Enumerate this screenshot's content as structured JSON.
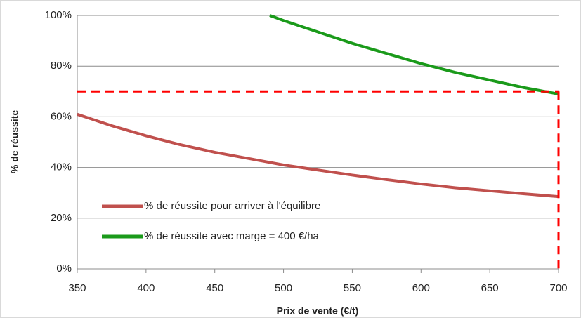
{
  "chart_data": {
    "type": "line",
    "xlabel": "Prix de vente (€/t)",
    "ylabel": "% de réussite",
    "x": [
      350,
      375,
      400,
      425,
      450,
      475,
      490,
      500,
      525,
      550,
      575,
      600,
      625,
      650,
      675,
      700
    ],
    "series": [
      {
        "name": "% de réussite pour arriver à l'équilibre",
        "color": "#c0504d",
        "values": [
          61,
          56.5,
          52.5,
          49,
          46,
          43.5,
          42,
          41,
          39,
          37,
          35.2,
          33.5,
          32,
          30.8,
          29.6,
          28.5
        ]
      },
      {
        "name": "% de réussite avec marge = 400 €/ha",
        "color": "#1a9a1a",
        "values": [
          null,
          null,
          null,
          null,
          null,
          null,
          100,
          98,
          93.5,
          89,
          85,
          81,
          77.5,
          74.5,
          71.5,
          69
        ]
      }
    ],
    "reference_lines": {
      "color": "#ff0000",
      "y": 70,
      "x": 700
    },
    "xlim": [
      350,
      700
    ],
    "xticks": [
      350,
      400,
      450,
      500,
      550,
      600,
      650,
      700
    ],
    "ylim": [
      0,
      100
    ],
    "yticks": [
      {
        "value": 0,
        "label": "0%"
      },
      {
        "value": 20,
        "label": "20%"
      },
      {
        "value": 40,
        "label": "40%"
      },
      {
        "value": 60,
        "label": "60%"
      },
      {
        "value": 80,
        "label": "80%"
      },
      {
        "value": 100,
        "label": "100%"
      }
    ],
    "grid": true,
    "legend": "lower-left"
  }
}
